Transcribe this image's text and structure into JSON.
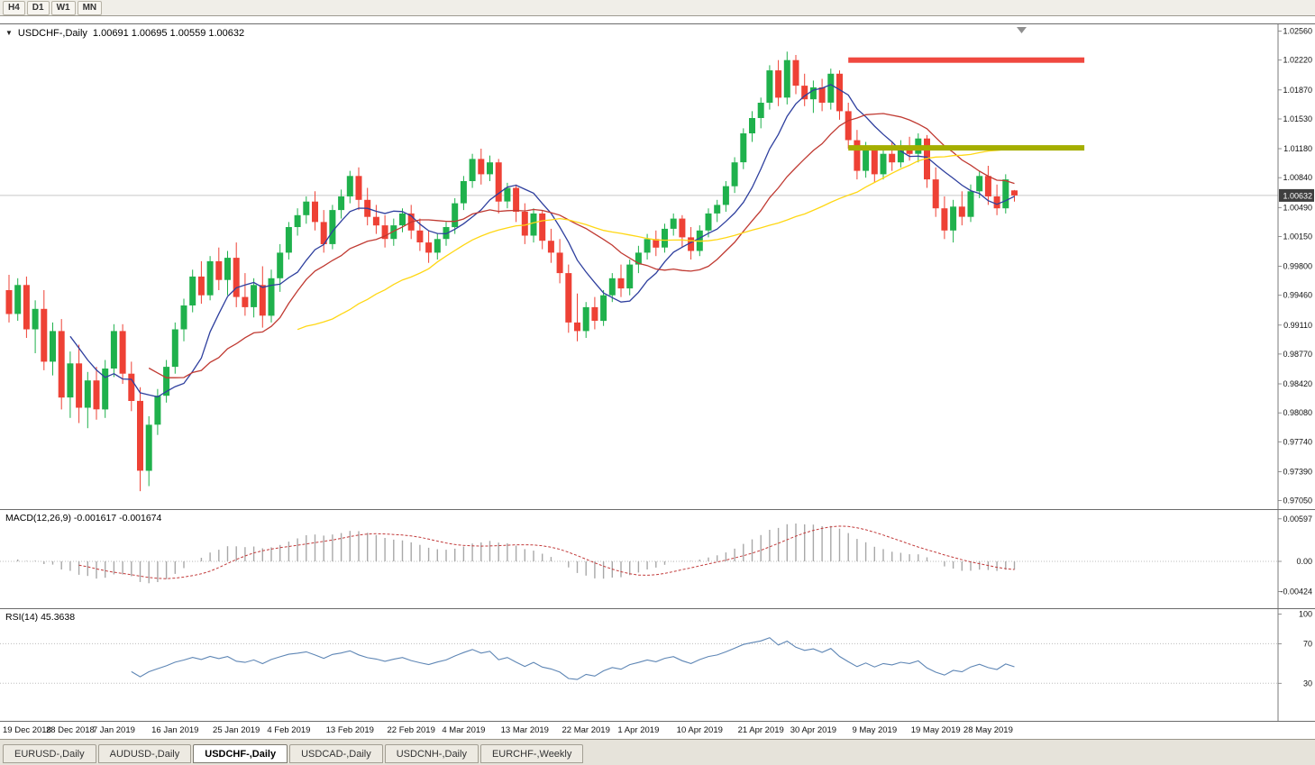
{
  "toolbar": {
    "timeframes": [
      {
        "label": "H4"
      },
      {
        "label": "D1"
      },
      {
        "label": "W1"
      },
      {
        "label": "MN"
      }
    ]
  },
  "chart": {
    "symbol_label": "USDCHF-,Daily",
    "ohlc_text": "1.00691 1.00695 1.00559 1.00632",
    "current_price": "1.00632",
    "price_axis_labels": [
      "1.02560",
      "1.02220",
      "1.01870",
      "1.01530",
      "1.01180",
      "1.00840",
      "1.00490",
      "1.00150",
      "0.99800",
      "0.99460",
      "0.99110",
      "0.98770",
      "0.98420",
      "0.98080",
      "0.97740",
      "0.97390",
      "0.97050"
    ],
    "date_axis": [
      {
        "label": "19 Dec 2018",
        "index": 0
      },
      {
        "label": "28 Dec 2018",
        "index": 7
      },
      {
        "label": "7 Jan 2019",
        "index": 12
      },
      {
        "label": "16 Jan 2019",
        "index": 19
      },
      {
        "label": "25 Jan 2019",
        "index": 26
      },
      {
        "label": "4 Feb 2019",
        "index": 32
      },
      {
        "label": "13 Feb 2019",
        "index": 39
      },
      {
        "label": "22 Feb 2019",
        "index": 46
      },
      {
        "label": "4 Mar 2019",
        "index": 52
      },
      {
        "label": "13 Mar 2019",
        "index": 59
      },
      {
        "label": "22 Mar 2019",
        "index": 66
      },
      {
        "label": "1 Apr 2019",
        "index": 72
      },
      {
        "label": "10 Apr 2019",
        "index": 79
      },
      {
        "label": "21 Apr 2019",
        "index": 86
      },
      {
        "label": "30 Apr 2019",
        "index": 92
      },
      {
        "label": "9 May 2019",
        "index": 99
      },
      {
        "label": "19 May 2019",
        "index": 106
      },
      {
        "label": "28 May 2019",
        "index": 112
      }
    ]
  },
  "indicators": {
    "macd": {
      "label": "MACD(12,26,9) -0.001617 -0.001674",
      "axis_ticks": [
        {
          "label": "0.00597",
          "value": 0.00597
        },
        {
          "label": "0.00",
          "value": 0
        },
        {
          "label": "-0.00424",
          "value": -0.00424
        }
      ]
    },
    "rsi": {
      "label": "RSI(14) 45.3638",
      "axis_ticks": [
        {
          "label": "100",
          "value": 100
        },
        {
          "label": "70",
          "value": 70
        },
        {
          "label": "30",
          "value": 30
        }
      ],
      "levels": [
        70,
        30
      ]
    }
  },
  "tabs": {
    "active_index": 2,
    "items": [
      {
        "label": "EURUSD-,Daily"
      },
      {
        "label": "AUDUSD-,Daily"
      },
      {
        "label": "USDCHF-,Daily"
      },
      {
        "label": "USDCAD-,Daily"
      },
      {
        "label": "USDCNH-,Daily"
      },
      {
        "label": "EURCHF-,Weekly"
      }
    ]
  },
  "colors": {
    "bull": "#1fb14c",
    "bear": "#ee4135",
    "ma_fast_blue": "#2e3f9e",
    "ma_mid_red": "#c03a32",
    "ma_slow_yellow": "#ffd714",
    "macd_hist": "#a8a8a8",
    "macd_signal": "#c23b3b",
    "rsi_line": "#5e86b5",
    "resistance": "#f0483f",
    "support": "#a4ae00",
    "bid_line": "#c8c8c8",
    "badge_bg": "#3f3f3f",
    "badge_text": "#ffffff",
    "axis_line": "#7a7a7a",
    "level_dotted": "#bdbdbd"
  },
  "chart_data": {
    "type": "candlestick",
    "title": "USDCHF-,Daily",
    "ylabel": "price",
    "xlabel": "date",
    "visible_price_range": [
      0.9695,
      1.0264
    ],
    "candles": [
      [
        "2018.12.19",
        0.9952,
        0.997,
        0.9914,
        0.9924
      ],
      [
        "2018.12.20",
        0.9924,
        0.9966,
        0.9916,
        0.9958
      ],
      [
        "2018.12.21",
        0.9958,
        0.9968,
        0.9896,
        0.9906
      ],
      [
        "2018.12.24",
        0.9906,
        0.994,
        0.9878,
        0.993
      ],
      [
        "2018.12.25",
        0.993,
        0.9952,
        0.9858,
        0.9868
      ],
      [
        "2018.12.26",
        0.9868,
        0.9914,
        0.9852,
        0.9904
      ],
      [
        "2018.12.27",
        0.9904,
        0.9918,
        0.9812,
        0.9826
      ],
      [
        "2018.12.28",
        0.9826,
        0.988,
        0.9802,
        0.9866
      ],
      [
        "2018.12.31",
        0.9866,
        0.9888,
        0.9796,
        0.9814
      ],
      [
        "2019.01.02",
        0.9814,
        0.9856,
        0.979,
        0.9846
      ],
      [
        "2019.01.03",
        0.9846,
        0.9862,
        0.98,
        0.9812
      ],
      [
        "2019.01.04",
        0.9812,
        0.987,
        0.9802,
        0.986
      ],
      [
        "2019.01.07",
        0.986,
        0.9912,
        0.985,
        0.9904
      ],
      [
        "2019.01.08",
        0.9904,
        0.9912,
        0.9842,
        0.9854
      ],
      [
        "2019.01.09",
        0.9854,
        0.9868,
        0.981,
        0.9822
      ],
      [
        "2019.01.10",
        0.9822,
        0.9838,
        0.9716,
        0.974
      ],
      [
        "2019.01.11",
        0.974,
        0.9804,
        0.9722,
        0.9794
      ],
      [
        "2019.01.14",
        0.9794,
        0.9836,
        0.9782,
        0.9828
      ],
      [
        "2019.01.15",
        0.9828,
        0.987,
        0.982,
        0.9862
      ],
      [
        "2019.01.16",
        0.9862,
        0.9914,
        0.9854,
        0.9906
      ],
      [
        "2019.01.17",
        0.9906,
        0.9942,
        0.9892,
        0.9934
      ],
      [
        "2019.01.18",
        0.9934,
        0.9976,
        0.9926,
        0.9968
      ],
      [
        "2019.01.21",
        0.9968,
        0.9986,
        0.9936,
        0.9946
      ],
      [
        "2019.01.22",
        0.9946,
        0.9992,
        0.994,
        0.9986
      ],
      [
        "2019.01.23",
        0.9986,
        1.0002,
        0.9952,
        0.9964
      ],
      [
        "2019.01.24",
        0.9964,
        0.9998,
        0.9946,
        0.999
      ],
      [
        "2019.01.25",
        0.999,
        1.0008,
        0.9932,
        0.9944
      ],
      [
        "2019.01.28",
        0.9944,
        0.9972,
        0.9922,
        0.9932
      ],
      [
        "2019.01.29",
        0.9932,
        0.9966,
        0.992,
        0.9958
      ],
      [
        "2019.01.30",
        0.9958,
        0.998,
        0.9908,
        0.9922
      ],
      [
        "2019.01.31",
        0.9922,
        0.9976,
        0.9914,
        0.9966
      ],
      [
        "2019.02.01",
        0.9966,
        1.0006,
        0.995,
        0.9996
      ],
      [
        "2019.02.04",
        0.9996,
        1.0032,
        0.9988,
        1.0026
      ],
      [
        "2019.02.05",
        1.0026,
        1.0048,
        1.0016,
        1.004
      ],
      [
        "2019.02.06",
        1.004,
        1.0062,
        1.003,
        1.0056
      ],
      [
        "2019.02.07",
        1.0056,
        1.0068,
        1.0022,
        1.0032
      ],
      [
        "2019.02.08",
        1.0032,
        1.0046,
        0.9996,
        1.0006
      ],
      [
        "2019.02.11",
        1.0006,
        1.0052,
        1.0,
        1.0046
      ],
      [
        "2019.02.12",
        1.0046,
        1.007,
        1.0036,
        1.0062
      ],
      [
        "2019.02.13",
        1.0062,
        1.0092,
        1.0054,
        1.0086
      ],
      [
        "2019.02.14",
        1.0086,
        1.0096,
        1.0046,
        1.0058
      ],
      [
        "2019.02.15",
        1.0058,
        1.0072,
        1.0028,
        1.0038
      ],
      [
        "2019.02.18",
        1.0038,
        1.0052,
        1.0018,
        1.0028
      ],
      [
        "2019.02.19",
        1.0028,
        1.004,
        1.0002,
        1.0012
      ],
      [
        "2019.02.20",
        1.0012,
        1.0036,
        1.0004,
        1.0028
      ],
      [
        "2019.02.21",
        1.0028,
        1.0048,
        1.002,
        1.0042
      ],
      [
        "2019.02.22",
        1.0042,
        1.0052,
        1.0012,
        1.0022
      ],
      [
        "2019.02.25",
        1.0022,
        1.0036,
        0.9998,
        1.0008
      ],
      [
        "2019.02.26",
        1.0008,
        1.0022,
        0.9984,
        0.9996
      ],
      [
        "2019.02.27",
        0.9996,
        1.0018,
        0.9988,
        1.0012
      ],
      [
        "2019.02.28",
        1.0012,
        1.0032,
        1.0004,
        1.0026
      ],
      [
        "2019.03.01",
        1.0026,
        1.006,
        1.0018,
        1.0054
      ],
      [
        "2019.03.04",
        1.0054,
        1.0086,
        1.0046,
        1.008
      ],
      [
        "2019.03.05",
        1.008,
        1.0112,
        1.0072,
        1.0106
      ],
      [
        "2019.03.06",
        1.0106,
        1.0118,
        1.0076,
        1.0088
      ],
      [
        "2019.03.07",
        1.0088,
        1.011,
        1.008,
        1.0102
      ],
      [
        "2019.03.08",
        1.0102,
        1.0106,
        1.0042,
        1.0056
      ],
      [
        "2019.03.11",
        1.0056,
        1.0078,
        1.0048,
        1.0072
      ],
      [
        "2019.03.12",
        1.0072,
        1.0076,
        1.0032,
        1.0044
      ],
      [
        "2019.03.13",
        1.0044,
        1.0054,
        1.0006,
        1.0016
      ],
      [
        "2019.03.14",
        1.0016,
        1.0048,
        1.0008,
        1.0042
      ],
      [
        "2019.03.15",
        1.0042,
        1.0046,
        1.0,
        1.001
      ],
      [
        "2019.03.18",
        1.001,
        1.0024,
        0.9984,
        0.9996
      ],
      [
        "2019.03.19",
        0.9996,
        1.0012,
        0.996,
        0.9972
      ],
      [
        "2019.03.20",
        0.9972,
        0.9982,
        0.9902,
        0.9914
      ],
      [
        "2019.03.21",
        0.9914,
        0.9948,
        0.9892,
        0.9904
      ],
      [
        "2019.03.22",
        0.9904,
        0.9938,
        0.9896,
        0.9932
      ],
      [
        "2019.03.25",
        0.9932,
        0.9944,
        0.9906,
        0.9916
      ],
      [
        "2019.03.26",
        0.9916,
        0.9952,
        0.991,
        0.9946
      ],
      [
        "2019.03.27",
        0.9946,
        0.9972,
        0.9938,
        0.9966
      ],
      [
        "2019.03.28",
        0.9966,
        0.9982,
        0.9944,
        0.9954
      ],
      [
        "2019.03.29",
        0.9954,
        0.9988,
        0.9946,
        0.9982
      ],
      [
        "2019.04.01",
        0.9982,
        1.0004,
        0.9972,
        0.9996
      ],
      [
        "2019.04.02",
        0.9996,
        1.0018,
        0.9988,
        1.0012
      ],
      [
        "2019.04.03",
        1.0012,
        1.0022,
        0.9992,
        1.0002
      ],
      [
        "2019.04.04",
        1.0002,
        1.003,
        0.9996,
        1.0024
      ],
      [
        "2019.04.05",
        1.0024,
        1.0042,
        1.0016,
        1.0036
      ],
      [
        "2019.04.08",
        1.0036,
        1.004,
        1.0002,
        1.0014
      ],
      [
        "2019.04.09",
        1.0014,
        1.0026,
        0.9988,
        0.9998
      ],
      [
        "2019.04.10",
        0.9998,
        1.0028,
        0.9992,
        1.0022
      ],
      [
        "2019.04.11",
        1.0022,
        1.0048,
        1.0014,
        1.0042
      ],
      [
        "2019.04.12",
        1.0042,
        1.0058,
        1.0032,
        1.0052
      ],
      [
        "2019.04.15",
        1.0052,
        1.008,
        1.0044,
        1.0074
      ],
      [
        "2019.04.16",
        1.0074,
        1.0108,
        1.0066,
        1.0102
      ],
      [
        "2019.04.17",
        1.0102,
        1.0142,
        1.0094,
        1.0136
      ],
      [
        "2019.04.18",
        1.0136,
        1.0162,
        1.0126,
        1.0154
      ],
      [
        "2019.04.22",
        1.0154,
        1.0178,
        1.0142,
        1.0172
      ],
      [
        "2019.04.23",
        1.0172,
        1.0216,
        1.0164,
        1.021
      ],
      [
        "2019.04.24",
        1.021,
        1.0222,
        1.0168,
        1.0178
      ],
      [
        "2019.04.25",
        1.0178,
        1.0232,
        1.017,
        1.0222
      ],
      [
        "2019.04.26",
        1.0222,
        1.0228,
        1.0182,
        1.0192
      ],
      [
        "2019.04.29",
        1.0192,
        1.0206,
        1.0168,
        1.0176
      ],
      [
        "2019.04.30",
        1.0176,
        1.0198,
        1.016,
        1.019
      ],
      [
        "2019.05.01",
        1.019,
        1.02,
        1.0162,
        1.0172
      ],
      [
        "2019.05.02",
        1.0172,
        1.0212,
        1.0164,
        1.0206
      ],
      [
        "2019.05.03",
        1.0206,
        1.021,
        1.0152,
        1.0162
      ],
      [
        "2019.05.06",
        1.0162,
        1.0172,
        1.0118,
        1.0128
      ],
      [
        "2019.05.07",
        1.0128,
        1.014,
        1.0082,
        1.0092
      ],
      [
        "2019.05.08",
        1.0092,
        1.0126,
        1.0084,
        1.0118
      ],
      [
        "2019.05.09",
        1.0118,
        1.0122,
        1.0078,
        1.0088
      ],
      [
        "2019.05.10",
        1.0088,
        1.0118,
        1.0082,
        1.0112
      ],
      [
        "2019.05.13",
        1.0112,
        1.0126,
        1.0092,
        1.0102
      ],
      [
        "2019.05.14",
        1.0102,
        1.0128,
        1.0096,
        1.012
      ],
      [
        "2019.05.15",
        1.012,
        1.0132,
        1.0104,
        1.0112
      ],
      [
        "2019.05.16",
        1.0112,
        1.0136,
        1.0102,
        1.013
      ],
      [
        "2019.05.17",
        1.013,
        1.0134,
        1.0072,
        1.0082
      ],
      [
        "2019.05.20",
        1.0082,
        1.0096,
        1.0038,
        1.0048
      ],
      [
        "2019.05.21",
        1.0048,
        1.0062,
        1.0012,
        1.0022
      ],
      [
        "2019.05.22",
        1.0022,
        1.0058,
        1.0008,
        1.005
      ],
      [
        "2019.05.23",
        1.005,
        1.0068,
        1.0028,
        1.0038
      ],
      [
        "2019.05.24",
        1.0038,
        1.0076,
        1.0032,
        1.0068
      ],
      [
        "2019.05.27",
        1.0068,
        1.0092,
        1.006,
        1.0086
      ],
      [
        "2019.05.28",
        1.0086,
        1.0098,
        1.0052,
        1.0062
      ],
      [
        "2019.05.29",
        1.0062,
        1.0076,
        1.004,
        1.0048
      ],
      [
        "2019.05.30",
        1.0048,
        1.0088,
        1.0042,
        1.0082
      ],
      [
        "2019.05.31",
        1.00691,
        1.00695,
        1.00559,
        1.00632
      ]
    ],
    "moving_averages": [
      {
        "type": "sma",
        "period": 8,
        "color_key": "ma_fast_blue"
      },
      {
        "type": "sma",
        "period": 17,
        "color_key": "ma_mid_red"
      },
      {
        "type": "sma",
        "period": 34,
        "color_key": "ma_slow_yellow"
      }
    ],
    "objects": [
      {
        "name": "resistance-line",
        "price": 1.0222,
        "start_index": 96,
        "end_index": 123,
        "color_key": "resistance",
        "thickness": 6
      },
      {
        "name": "support-line",
        "price": 1.0119,
        "start_index": 96,
        "end_index": 123,
        "color_key": "support",
        "thickness": 6
      }
    ],
    "macd": {
      "fast": 12,
      "slow": 26,
      "signal_period": 9,
      "current_main": -0.001617,
      "current_signal": -0.001674
    },
    "rsi": {
      "period": 14,
      "current": 45.3638,
      "axis_range": [
        0,
        100
      ]
    }
  }
}
